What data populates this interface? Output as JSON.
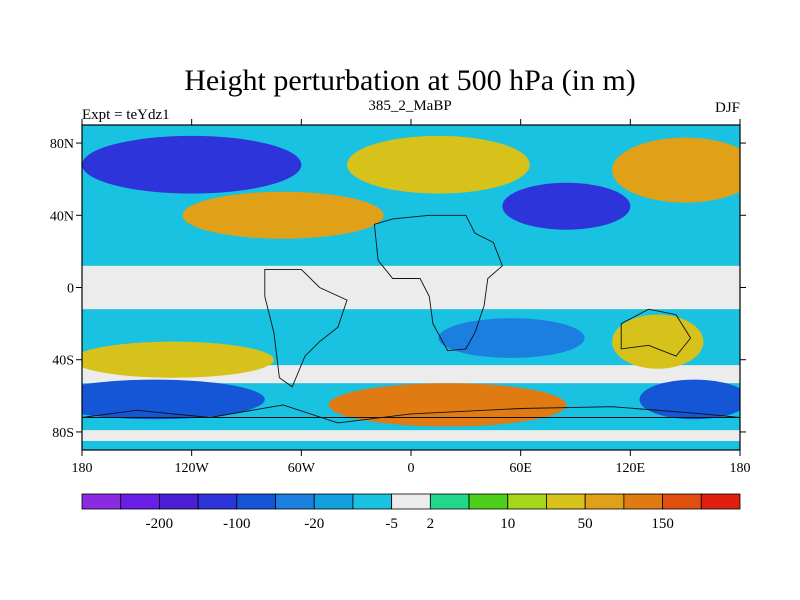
{
  "chart_data": {
    "type": "heatmap",
    "title": "Height perturbation at 500 hPa (in m)",
    "left_label": "Expt = teYdz1",
    "center_label": "385_2_MaBP",
    "right_label": "DJF",
    "x_range": [
      -180,
      180
    ],
    "y_range": [
      -90,
      90
    ],
    "x_ticks": [
      {
        "value": -180,
        "label": "180"
      },
      {
        "value": -120,
        "label": "120W"
      },
      {
        "value": -60,
        "label": "60W"
      },
      {
        "value": 0,
        "label": "0"
      },
      {
        "value": 60,
        "label": "60E"
      },
      {
        "value": 120,
        "label": "120E"
      },
      {
        "value": 180,
        "label": "180"
      }
    ],
    "y_ticks": [
      {
        "value": 80,
        "label": "80N"
      },
      {
        "value": 40,
        "label": "40N"
      },
      {
        "value": 0,
        "label": "0"
      },
      {
        "value": -40,
        "label": "40S"
      },
      {
        "value": -80,
        "label": "80S"
      }
    ],
    "colorbar": {
      "colors": [
        "#8a2be2",
        "#6a1fe6",
        "#4a1fd6",
        "#2d34d9",
        "#1456d6",
        "#1b7fe0",
        "#13a0de",
        "#19c2e0",
        "#ececec",
        "#22d68a",
        "#4ecf1c",
        "#a6d61a",
        "#d6c21a",
        "#e0a018",
        "#e07a12",
        "#e04e10",
        "#e01e10"
      ],
      "labels": [
        {
          "boundary": 2,
          "text": "-200"
        },
        {
          "boundary": 4,
          "text": "-100"
        },
        {
          "boundary": 6,
          "text": "-20"
        },
        {
          "boundary": 8,
          "text": "-5"
        },
        {
          "boundary": 9,
          "text": "2"
        },
        {
          "boundary": 11,
          "text": "10"
        },
        {
          "boundary": 13,
          "text": "50"
        },
        {
          "boundary": 15,
          "text": "150"
        }
      ]
    },
    "regions": [
      {
        "name": "north-pacific-low",
        "lon": -120,
        "lat": 68,
        "rlon": 60,
        "rlat": 16,
        "cls": [
          3,
          4,
          5,
          6
        ]
      },
      {
        "name": "north-america-ridge",
        "lon": -70,
        "lat": 40,
        "rlon": 55,
        "rlat": 13,
        "cls": [
          13,
          12,
          11,
          10
        ]
      },
      {
        "name": "atlantic-ridge",
        "lon": 15,
        "lat": 68,
        "rlon": 50,
        "rlat": 16,
        "cls": [
          12,
          11,
          10,
          9
        ]
      },
      {
        "name": "eurasia-low",
        "lon": 85,
        "lat": 45,
        "rlon": 35,
        "rlat": 13,
        "cls": [
          3,
          4,
          5,
          6
        ]
      },
      {
        "name": "siberia-ridge",
        "lon": 150,
        "lat": 65,
        "rlon": 40,
        "rlat": 18,
        "cls": [
          13,
          12,
          11,
          10
        ]
      },
      {
        "name": "southern-ridge-west",
        "lon": -130,
        "lat": -40,
        "rlon": 55,
        "rlat": 10,
        "cls": [
          12,
          11,
          10,
          9
        ]
      },
      {
        "name": "southern-low-west",
        "lon": -140,
        "lat": -62,
        "rlon": 60,
        "rlat": 11,
        "cls": [
          4,
          5,
          6,
          7
        ]
      },
      {
        "name": "south-atlantic-ridge",
        "lon": 20,
        "lat": -65,
        "rlon": 65,
        "rlat": 12,
        "cls": [
          14,
          13,
          12,
          11
        ]
      },
      {
        "name": "indian-ocean-low",
        "lon": 55,
        "lat": -28,
        "rlon": 40,
        "rlat": 11,
        "cls": [
          5,
          6,
          7
        ]
      },
      {
        "name": "australia-ridge",
        "lon": 135,
        "lat": -30,
        "rlon": 25,
        "rlat": 15,
        "cls": [
          12,
          11,
          10
        ]
      },
      {
        "name": "southern-low-east",
        "lon": 155,
        "lat": -62,
        "rlon": 30,
        "rlat": 11,
        "cls": [
          4,
          5,
          6,
          7
        ]
      }
    ]
  }
}
